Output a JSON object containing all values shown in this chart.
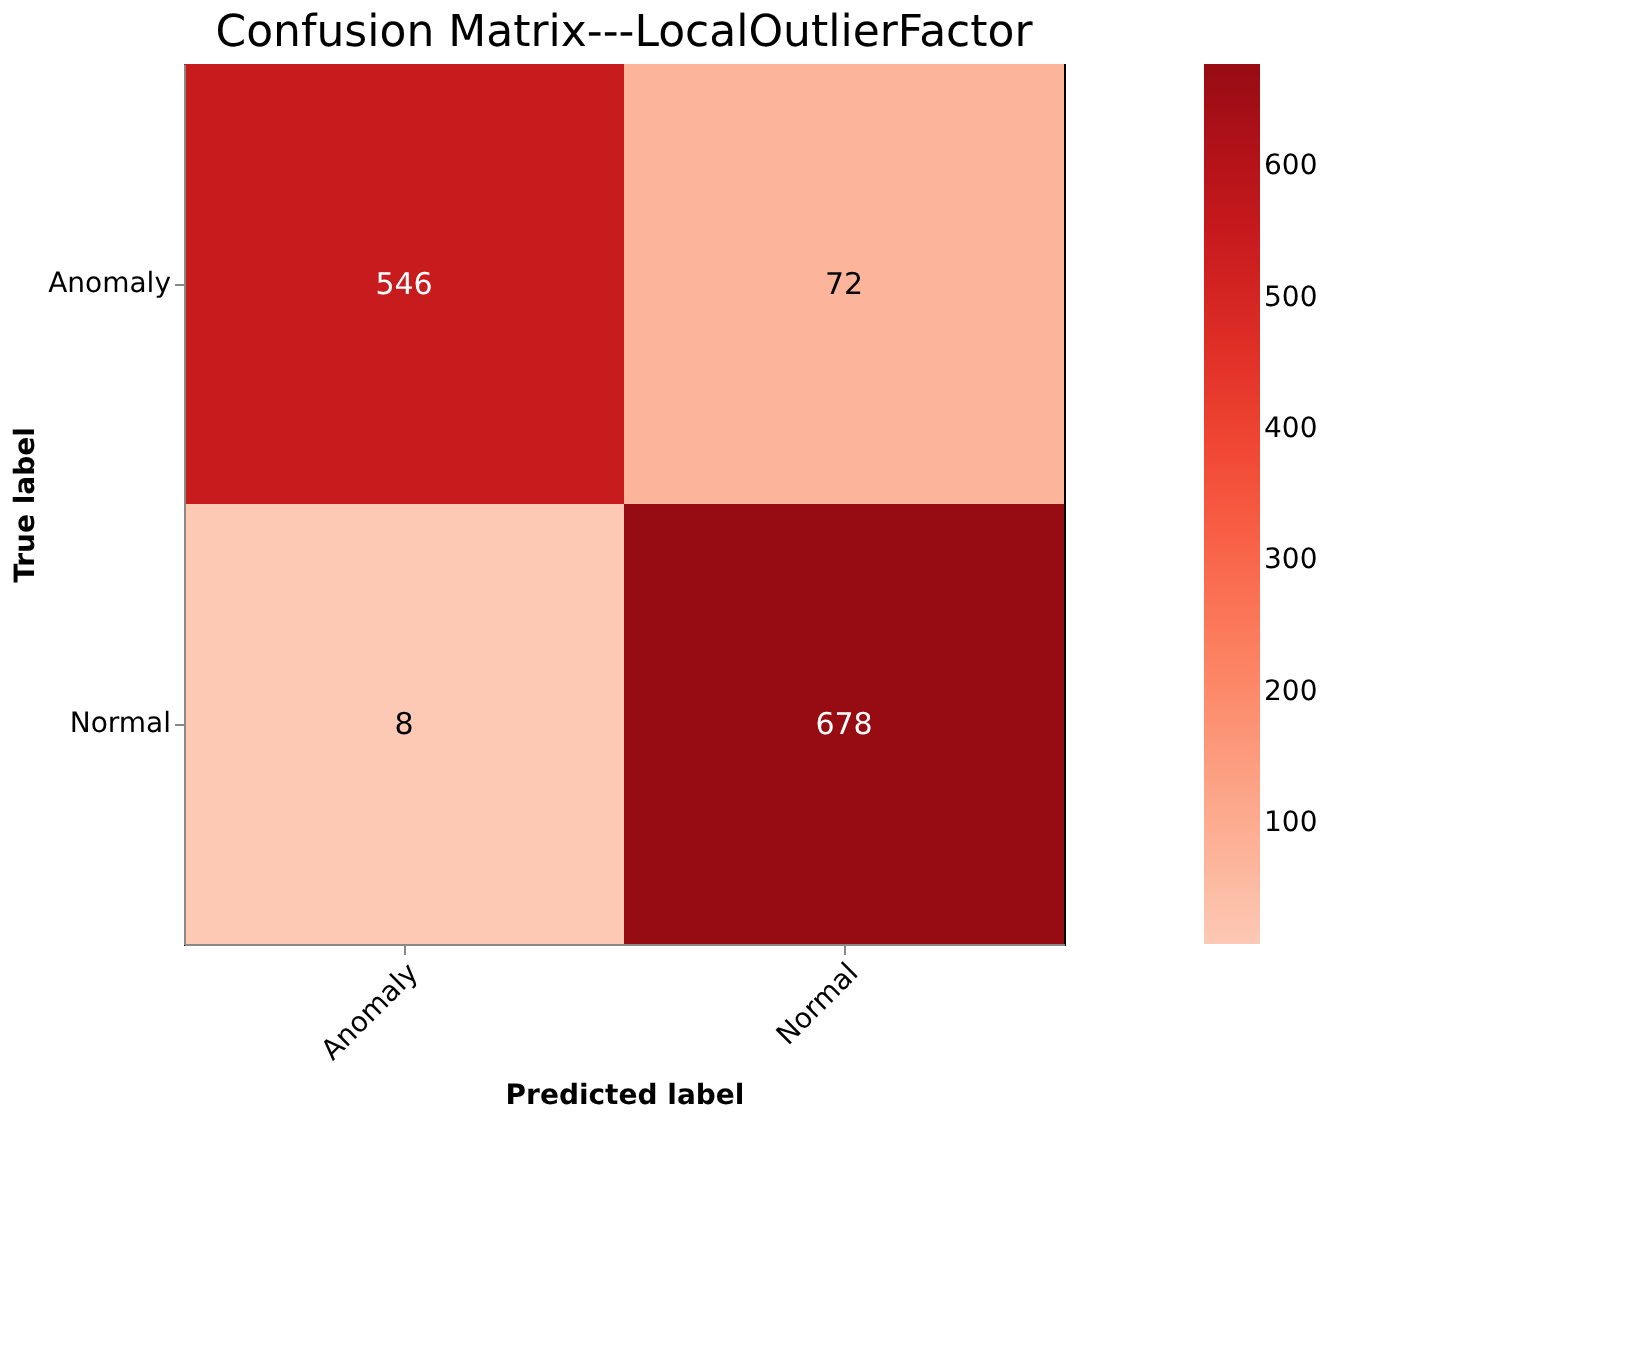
{
  "chart_data": {
    "type": "heatmap",
    "title": "Confusion Matrix---LocalOutlierFactor",
    "xlabel": "Predicted label",
    "ylabel": "True label",
    "categories": [
      "Anomaly",
      "Normal"
    ],
    "y_categories": [
      "Anomaly",
      "Normal"
    ],
    "cells": [
      [
        546,
        72
      ],
      [
        8,
        678
      ]
    ],
    "clim": [
      8,
      678
    ],
    "cticks": [
      100,
      200,
      300,
      400,
      500,
      600
    ],
    "data_labels": true
  }
}
